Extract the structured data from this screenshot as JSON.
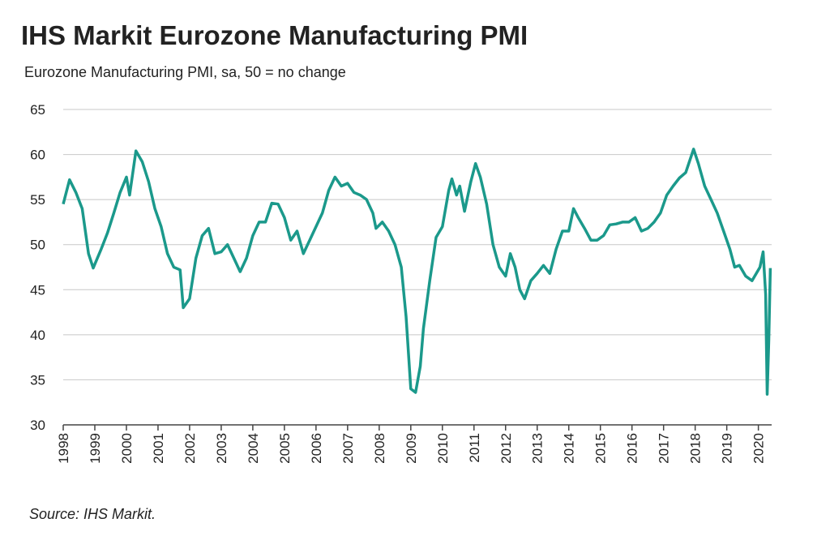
{
  "chart_data": {
    "type": "line",
    "title": "IHS Markit Eurozone Manufacturing PMI",
    "subtitle": "Eurozone Manufacturing PMI, sa, 50 = no change",
    "source": "Source: IHS Markit.",
    "x": [
      1998.0,
      1998.2,
      1998.4,
      1998.6,
      1998.8,
      1998.95,
      1999.2,
      1999.4,
      1999.6,
      1999.8,
      2000.0,
      2000.1,
      2000.3,
      2000.5,
      2000.7,
      2000.9,
      2001.1,
      2001.3,
      2001.5,
      2001.7,
      2001.8,
      2002.0,
      2002.2,
      2002.4,
      2002.6,
      2002.8,
      2003.0,
      2003.2,
      2003.4,
      2003.6,
      2003.8,
      2004.0,
      2004.2,
      2004.4,
      2004.6,
      2004.8,
      2005.0,
      2005.2,
      2005.4,
      2005.6,
      2005.8,
      2006.0,
      2006.2,
      2006.4,
      2006.6,
      2006.8,
      2007.0,
      2007.2,
      2007.4,
      2007.6,
      2007.8,
      2007.9,
      2008.1,
      2008.3,
      2008.5,
      2008.7,
      2008.85,
      2009.0,
      2009.15,
      2009.3,
      2009.4,
      2009.6,
      2009.8,
      2010.0,
      2010.2,
      2010.3,
      2010.45,
      2010.55,
      2010.7,
      2010.9,
      2011.05,
      2011.2,
      2011.4,
      2011.6,
      2011.8,
      2012.0,
      2012.15,
      2012.3,
      2012.45,
      2012.6,
      2012.8,
      2013.0,
      2013.2,
      2013.4,
      2013.6,
      2013.8,
      2014.0,
      2014.15,
      2014.3,
      2014.5,
      2014.7,
      2014.9,
      2015.1,
      2015.3,
      2015.5,
      2015.7,
      2015.9,
      2016.1,
      2016.3,
      2016.5,
      2016.7,
      2016.9,
      2017.1,
      2017.3,
      2017.5,
      2017.7,
      2017.95,
      2018.1,
      2018.3,
      2018.5,
      2018.7,
      2018.9,
      2019.1,
      2019.25,
      2019.4,
      2019.6,
      2019.8,
      2020.05,
      2020.15,
      2020.23,
      2020.28,
      2020.33,
      2020.38
    ],
    "series": [
      {
        "name": "Eurozone Manufacturing PMI",
        "color": "#1b998b",
        "values": [
          54.5,
          57.2,
          55.8,
          54,
          49,
          47.4,
          49.5,
          51.3,
          53.5,
          55.8,
          57.5,
          55.5,
          60.4,
          59.2,
          57,
          54,
          52,
          49,
          47.5,
          47.2,
          43,
          44,
          48.5,
          51,
          51.8,
          49,
          49.2,
          50,
          48.5,
          47,
          48.5,
          51,
          52.5,
          52.5,
          54.6,
          54.5,
          53,
          50.5,
          51.5,
          49,
          50.5,
          52,
          53.5,
          56,
          57.5,
          56.5,
          56.8,
          55.8,
          55.5,
          55,
          53.5,
          51.8,
          52.5,
          51.5,
          50,
          47.5,
          42,
          34,
          33.6,
          36.5,
          40.7,
          46,
          50.8,
          52,
          56,
          57.3,
          55.5,
          56.5,
          53.7,
          57,
          59,
          57.5,
          54.5,
          50,
          47.5,
          46.5,
          49,
          47.5,
          45,
          44,
          46,
          46.8,
          47.7,
          46.8,
          49.5,
          51.5,
          51.5,
          54,
          53,
          51.8,
          50.5,
          50.5,
          51,
          52.2,
          52.3,
          52.5,
          52.5,
          53,
          51.5,
          51.8,
          52.5,
          53.5,
          55.5,
          56.5,
          57.4,
          58,
          60.6,
          59,
          56.5,
          55,
          53.5,
          51.5,
          49.5,
          47.5,
          47.7,
          46.5,
          46,
          47.5,
          49.2,
          44.5,
          33.4,
          39.4,
          47.4
        ]
      }
    ],
    "xlim": [
      1998,
      2020.42
    ],
    "xticks": [
      1998,
      1999,
      2000,
      2001,
      2002,
      2003,
      2004,
      2005,
      2006,
      2007,
      2008,
      2009,
      2010,
      2011,
      2012,
      2013,
      2014,
      2015,
      2016,
      2017,
      2018,
      2019,
      2020
    ],
    "ylim": [
      30,
      65
    ],
    "yticks": [
      30,
      35,
      40,
      45,
      50,
      55,
      60,
      65
    ],
    "grid": true
  }
}
